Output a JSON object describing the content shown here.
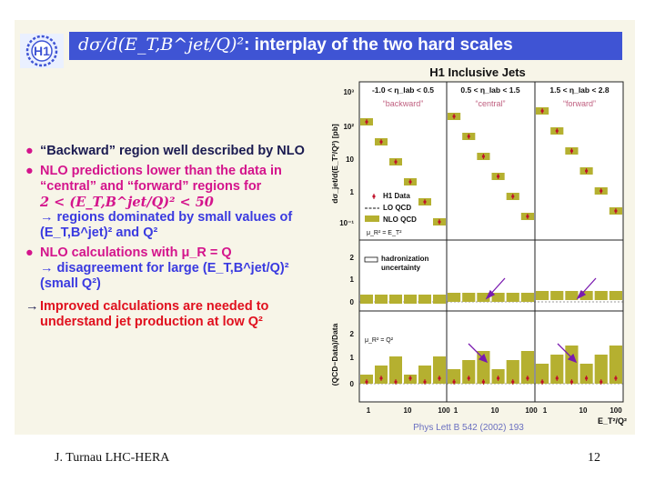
{
  "slide": {
    "title_math": "dσ/d(E_T,B^jet/Q)²",
    "title_text": ": interplay of the two hard scales",
    "logo_text": "H1"
  },
  "bullets": [
    {
      "marker": "●",
      "text": "“Backward” region well described by NLO"
    },
    {
      "marker": "●",
      "line1": "NLO predictions lower than the data in “central” and “forward” regions for",
      "math": "2 < (E_T,B^jet/Q)² < 50",
      "arrow_text": "→ regions dominated by small values of (E_T,B^jet)² and Q²"
    },
    {
      "marker": "●",
      "line1": "NLO calculations with μ_R = Q",
      "arrow_text": "→ disagreement for large (E_T,B^jet/Q)²",
      "line3": "(small Q²)"
    },
    {
      "marker": "→",
      "text": "Improved calculations are needed to understand jet production at low Q²"
    }
  ],
  "plot": {
    "heading": "H1 Inclusive Jets",
    "regions": [
      {
        "range": "-1.0 < η_lab < 0.5",
        "name": "“backward”"
      },
      {
        "range": "0.5 < η_lab < 1.5",
        "name": "“central”"
      },
      {
        "range": "1.5 < η_lab < 2.8",
        "name": "“forward”"
      }
    ],
    "ylabel_top": "dσ_jet/d(E_T²/Q²) [pb]",
    "ylabel_bottom": "(QCD−Data)/Data",
    "legend": [
      "H1 Data",
      "LO QCD",
      "NLO QCD",
      "μ_R² = E_T²"
    ],
    "legend_mid": [
      "hadronization",
      "uncertainty"
    ],
    "legend_bottom": "μ_R² = Q²",
    "top_ticks": [
      "10³",
      "10²",
      "10",
      "1",
      "10⁻¹"
    ],
    "mid_ticks": [
      "2",
      "1",
      "0"
    ],
    "bottom_ticks": [
      "2",
      "1",
      "0"
    ],
    "x_ticks": [
      "1",
      "10",
      "100"
    ],
    "x_ticks_last": [
      "1",
      "10",
      "100"
    ],
    "xlabel": "E_T²/Q²",
    "reference": "Phys Lett B 542 (2002) 193"
  },
  "footer": {
    "author": "J. Turnau LHC-HERA",
    "page": "12"
  },
  "colors": {
    "title_bar": "#3f54d4",
    "bullet_dark": "#1a1a50",
    "bullet_magenta": "#d4148c",
    "bullet_blue": "#3a3ae0",
    "bullet_red": "#e0101e",
    "nlo_band": "#b5b030"
  }
}
